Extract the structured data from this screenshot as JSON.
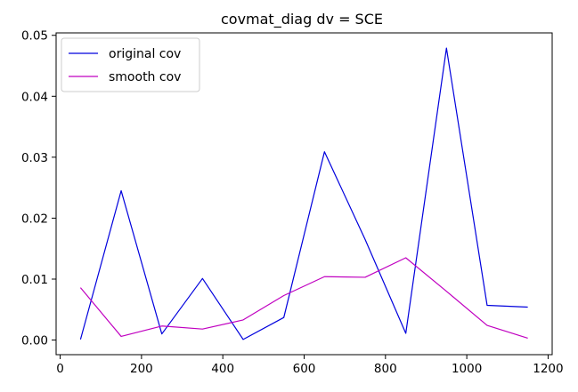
{
  "chart_data": {
    "type": "line",
    "title": "covmat_diag dv = SCE",
    "xlabel": "",
    "ylabel": "",
    "xlim": [
      -10,
      1210
    ],
    "ylim": [
      -0.0024,
      0.0504
    ],
    "xticks": [
      0,
      200,
      400,
      600,
      800,
      1000,
      1200
    ],
    "yticks": [
      0.0,
      0.01,
      0.02,
      0.03,
      0.04,
      0.05
    ],
    "xtick_labels": [
      "0",
      "200",
      "400",
      "600",
      "800",
      "1000",
      "1200"
    ],
    "ytick_labels": [
      "0.00",
      "0.01",
      "0.02",
      "0.03",
      "0.04",
      "0.05"
    ],
    "grid": false,
    "legend": "top-left",
    "x": [
      50,
      150,
      250,
      350,
      450,
      550,
      650,
      750,
      850,
      950,
      1050,
      1150
    ],
    "series": [
      {
        "name": "original cov",
        "color": "#0000dd",
        "values": [
          0.0001,
          0.0245,
          0.001,
          0.0101,
          0.0001,
          0.0037,
          0.0309,
          0.0165,
          0.0011,
          0.0479,
          0.0057,
          0.0054
        ]
      },
      {
        "name": "smooth cov",
        "color": "#c000c0",
        "values": [
          0.0086,
          0.0006,
          0.0023,
          0.0018,
          0.0033,
          0.0073,
          0.0104,
          0.0103,
          0.0135,
          0.008,
          0.0024,
          0.0003
        ]
      }
    ]
  }
}
